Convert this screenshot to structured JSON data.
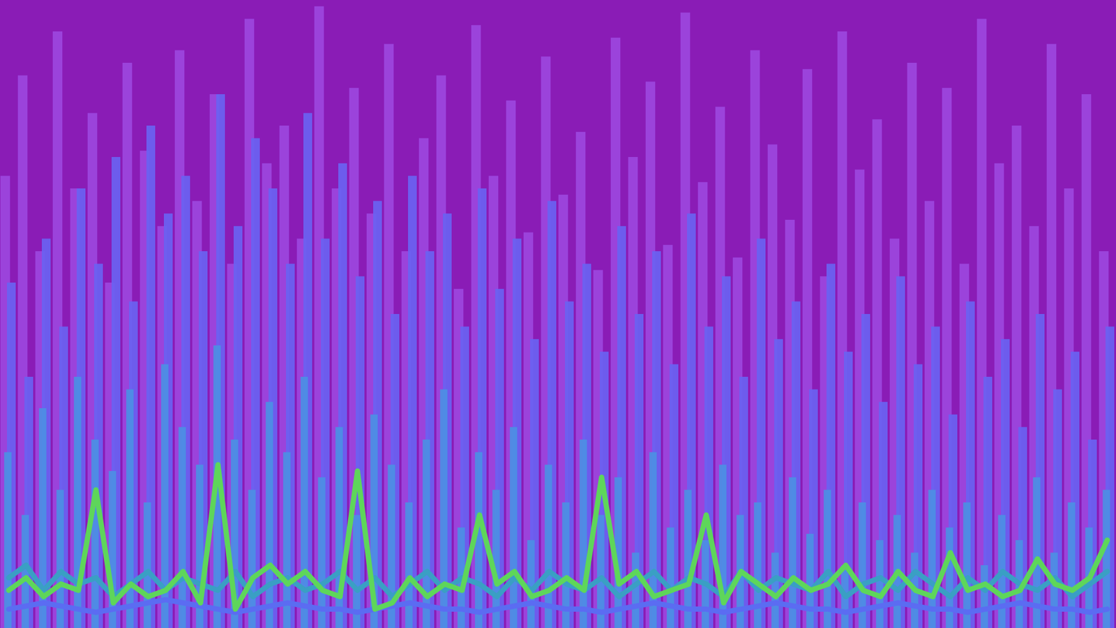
{
  "chart_data": {
    "type": "bar",
    "tick_labels": false,
    "stacked": false,
    "x": [
      0,
      1,
      2,
      3,
      4,
      5,
      6,
      7,
      8,
      9,
      10,
      11,
      12,
      13,
      14,
      15,
      16,
      17,
      18,
      19,
      20,
      21,
      22,
      23,
      24,
      25,
      26,
      27,
      28,
      29,
      30,
      31,
      32,
      33,
      34,
      35,
      36,
      37,
      38,
      39,
      40,
      41,
      42,
      43,
      44,
      45,
      46,
      47,
      48,
      49,
      50,
      51,
      52,
      53,
      54,
      55,
      56,
      57,
      58,
      59,
      60,
      61,
      62,
      63
    ],
    "xlim": [
      -0.5,
      63.5
    ],
    "ylim": [
      0,
      100
    ],
    "series": [
      {
        "type": "bar",
        "color": "#9c46de",
        "values": [
          72,
          88,
          60,
          95,
          70,
          82,
          55,
          90,
          76,
          64,
          92,
          68,
          85,
          58,
          97,
          74,
          80,
          62,
          99,
          70,
          86,
          66,
          93,
          60,
          78,
          88,
          54,
          96,
          72,
          84,
          63,
          91,
          69,
          79,
          57,
          94,
          75,
          87,
          61,
          98,
          71,
          83,
          59,
          92,
          77,
          65,
          89,
          56,
          95,
          73,
          81,
          62,
          90,
          68,
          86,
          58,
          97,
          74,
          80,
          64,
          93,
          70,
          85,
          60
        ]
      },
      {
        "type": "bar",
        "color": "#6a62f2",
        "values": [
          55,
          40,
          62,
          48,
          70,
          58,
          75,
          52,
          80,
          66,
          72,
          60,
          85,
          64,
          78,
          70,
          58,
          82,
          62,
          74,
          56,
          68,
          50,
          72,
          60,
          66,
          48,
          70,
          54,
          62,
          46,
          68,
          52,
          58,
          44,
          64,
          50,
          60,
          42,
          66,
          48,
          56,
          40,
          62,
          46,
          52,
          38,
          58,
          44,
          50,
          36,
          56,
          42,
          48,
          34,
          52,
          40,
          46,
          32,
          50,
          38,
          44,
          30,
          48
        ]
      },
      {
        "type": "bar",
        "color": "#4c8fe4",
        "values": [
          28,
          18,
          35,
          22,
          40,
          30,
          25,
          38,
          20,
          42,
          32,
          26,
          45,
          30,
          22,
          36,
          28,
          40,
          24,
          32,
          18,
          34,
          26,
          20,
          30,
          38,
          16,
          28,
          22,
          32,
          14,
          26,
          20,
          30,
          18,
          24,
          12,
          28,
          16,
          22,
          14,
          26,
          18,
          20,
          12,
          24,
          15,
          22,
          10,
          20,
          14,
          18,
          12,
          22,
          16,
          20,
          10,
          18,
          14,
          24,
          12,
          20,
          16,
          22
        ]
      },
      {
        "type": "line",
        "color": "#5b6cf2",
        "values": [
          3,
          3.5,
          4,
          3.5,
          3,
          2.5,
          3,
          3.5,
          4,
          4.5,
          4,
          3.5,
          3,
          2.5,
          3,
          3.5,
          4,
          3.5,
          3,
          3,
          2.5,
          3,
          3.5,
          4,
          3.5,
          3,
          3,
          2.5,
          3,
          3.5,
          4,
          3.5,
          3,
          3,
          2.5,
          3,
          3.5,
          4,
          3.5,
          3,
          3,
          2.5,
          3,
          3.5,
          4,
          3.5,
          3,
          3,
          2.5,
          3,
          3.5,
          4,
          3.5,
          3,
          3,
          2.5,
          3,
          3.5,
          4,
          3.5,
          3,
          3,
          2.5,
          3
        ]
      },
      {
        "type": "line",
        "color": "#3a9fc4",
        "values": [
          8,
          10,
          6,
          9,
          7,
          8,
          5,
          7,
          9,
          6,
          8,
          7,
          6,
          9,
          5,
          7,
          8,
          6,
          7,
          9,
          6,
          8,
          5,
          7,
          9,
          6,
          8,
          7,
          5,
          8,
          6,
          9,
          7,
          6,
          8,
          5,
          7,
          9,
          6,
          8,
          7,
          5,
          9,
          6,
          8,
          7,
          6,
          9,
          5,
          7,
          8,
          6,
          9,
          7,
          5,
          8,
          6,
          9,
          7,
          6,
          8,
          5,
          7,
          9
        ]
      },
      {
        "type": "line",
        "color": "#5ed65a",
        "values": [
          6,
          8,
          5,
          7,
          6,
          22,
          4,
          7,
          5,
          6,
          9,
          4,
          26,
          3,
          8,
          10,
          7,
          9,
          6,
          5,
          25,
          3,
          4,
          8,
          5,
          7,
          6,
          18,
          7,
          9,
          5,
          6,
          8,
          6,
          24,
          7,
          9,
          5,
          6,
          7,
          18,
          4,
          9,
          7,
          5,
          8,
          6,
          7,
          10,
          6,
          5,
          9,
          6,
          5,
          12,
          6,
          7,
          5,
          6,
          11,
          7,
          6,
          8,
          14
        ]
      }
    ]
  }
}
